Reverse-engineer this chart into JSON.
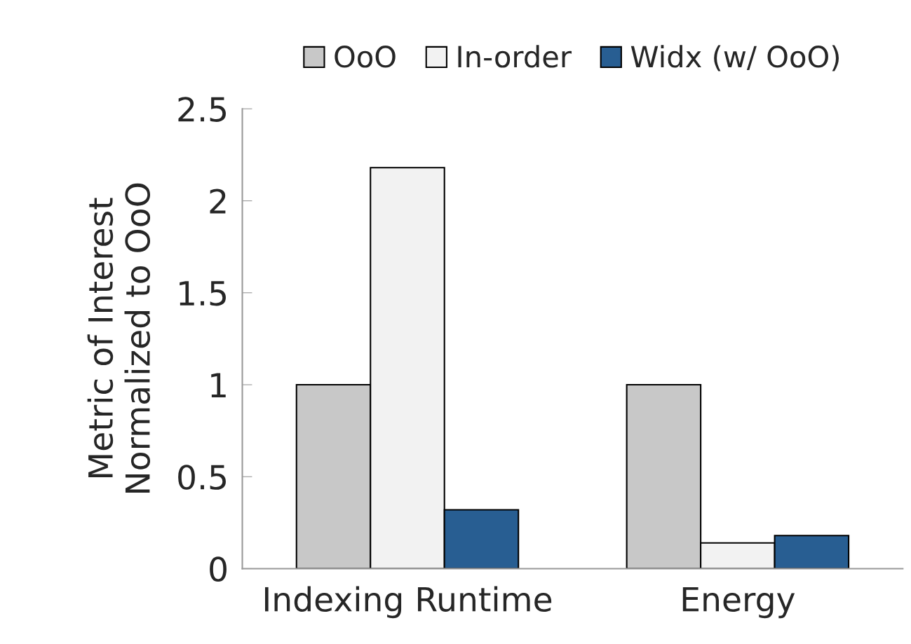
{
  "chart_data": {
    "type": "bar",
    "ylabel": "Metric of Interest\nNormalized to OoO",
    "categories": [
      "Indexing Runtime",
      "Energy"
    ],
    "series": [
      {
        "name": "OoO",
        "color": "#c8c8c8",
        "values": [
          1,
          1
        ]
      },
      {
        "name": "In-order",
        "color": "#f2f2f2",
        "values": [
          2.18,
          0.14
        ]
      },
      {
        "name": "Widx (w/ OoO)",
        "color": "#285e92",
        "values": [
          0.32,
          0.18
        ]
      }
    ],
    "ylim": [
      0,
      2.5
    ],
    "yticks": [
      0,
      0.5,
      1,
      1.5,
      2,
      2.5
    ],
    "grid": false,
    "legend": "top"
  }
}
